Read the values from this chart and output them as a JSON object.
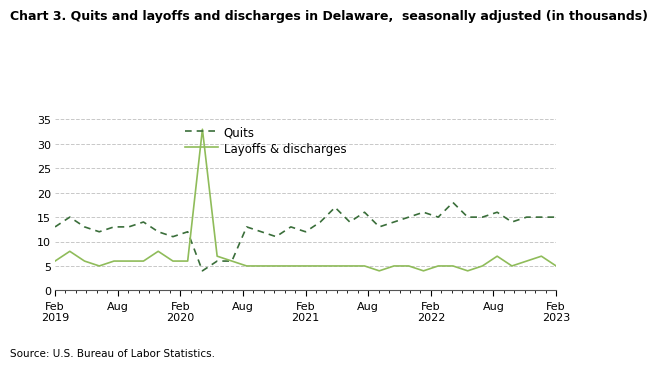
{
  "title": "Chart 3. Quits and layoffs and discharges in Delaware,  seasonally adjusted (in thousands)",
  "source": "Source: U.S. Bureau of Labor Statistics.",
  "quits": [
    13,
    15,
    13,
    12,
    13,
    13,
    14,
    12,
    11,
    12,
    4,
    6,
    6,
    13,
    12,
    11,
    13,
    12,
    14,
    17,
    14,
    16,
    13,
    14,
    15,
    16,
    15,
    18,
    15,
    15,
    16,
    14,
    15,
    15,
    15
  ],
  "layoffs": [
    6,
    8,
    6,
    5,
    6,
    6,
    6,
    8,
    6,
    6,
    33,
    7,
    6,
    5,
    5,
    5,
    5,
    5,
    5,
    5,
    5,
    5,
    4,
    5,
    5,
    4,
    5,
    5,
    4,
    5,
    7,
    5,
    6,
    7,
    5
  ],
  "ylim": [
    0,
    35
  ],
  "yticks": [
    0,
    5,
    10,
    15,
    20,
    25,
    30,
    35
  ],
  "quits_color": "#3a6e3a",
  "layoffs_color": "#8fbc5a",
  "background_color": "#ffffff",
  "grid_color": "#c8c8c8",
  "title_fontsize": 9,
  "legend_fontsize": 8.5,
  "axis_fontsize": 8,
  "source_fontsize": 7.5
}
